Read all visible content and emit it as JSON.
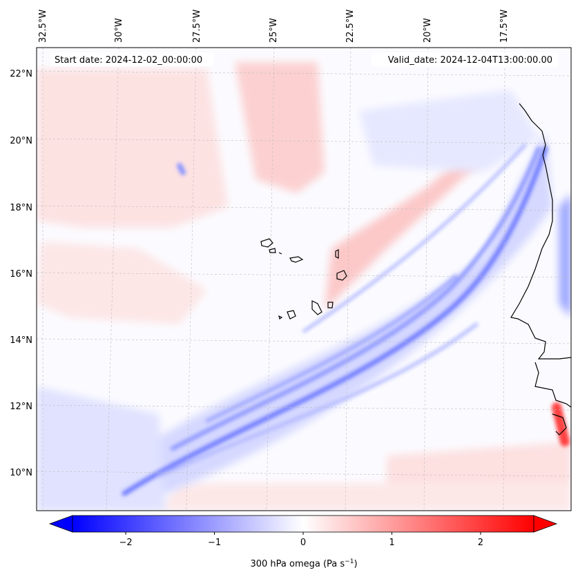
{
  "map": {
    "start_date": "Start date: 2024-12-02_00:00:00",
    "valid_date": "Valid_date: 2024-12-04T13:00:00.00",
    "lon_labels": [
      "32.5°W",
      "30°W",
      "27.5°W",
      "25°W",
      "22.5°W",
      "20°W",
      "17.5°W"
    ],
    "lat_labels": [
      "22°N",
      "20°N",
      "18°N",
      "16°N",
      "14°N",
      "12°N",
      "10°N"
    ],
    "colors": {
      "negative": "#0000ff",
      "neutral": "#ffffff",
      "positive": "#ff0000",
      "coastline": "#000000",
      "gridline": "#bbbbbb"
    }
  },
  "colorbar": {
    "range": [
      -2.6,
      2.6
    ],
    "ticks": [
      -2,
      -1,
      0,
      1,
      2
    ],
    "tick_labels": [
      "−2",
      "−1",
      "0",
      "1",
      "2"
    ],
    "label": "300 hPa omega (Pa s",
    "label_sup": "−1",
    "label_close": ")"
  }
}
